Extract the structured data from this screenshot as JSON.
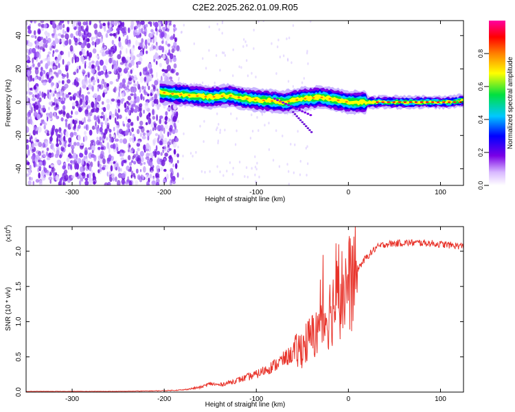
{
  "title": "C2E2.2025.262.01.09.R05",
  "chart_data": [
    {
      "type": "heatmap",
      "name": "spectrogram",
      "xlabel": "Height of straight line (km)",
      "ylabel": "Frequency (Hz)",
      "xlim": [
        -350,
        125
      ],
      "ylim": [
        -50,
        49
      ],
      "xticks": [
        -300,
        -200,
        -100,
        0,
        100
      ],
      "yticks": [
        -40,
        -20,
        0,
        20,
        40
      ],
      "colorbar": {
        "label": "Normalized spectral amplitude",
        "range": [
          0,
          1
        ],
        "ticks": [
          0.0,
          0.2,
          0.4,
          0.6,
          0.8
        ],
        "colors": [
          "#ffffff",
          "#7a00e6",
          "#0000ff",
          "#00c8ff",
          "#00e040",
          "#ffff00",
          "#ff8000",
          "#ff0000",
          "#ff00a0"
        ]
      },
      "ridge": {
        "description_points_x": [
          -205,
          -190,
          -170,
          -150,
          -130,
          -110,
          -90,
          -70,
          -50,
          -30,
          -10,
          0,
          20,
          50,
          80,
          110,
          125
        ],
        "description_points_y": [
          6,
          5,
          4,
          3,
          4,
          2,
          1,
          0,
          2,
          3,
          1,
          0,
          0,
          0,
          0,
          0,
          1
        ]
      },
      "noise_region_x": [
        -350,
        -185
      ]
    },
    {
      "type": "line",
      "name": "snr",
      "xlabel": "Height of straight line (km)",
      "ylabel": "SNR (10 * v/v)",
      "scale_label": "(x10",
      "scale_exp": "4",
      "scale_close": ")",
      "xlim": [
        -350,
        125
      ],
      "ylim": [
        0,
        2.35
      ],
      "xticks": [
        -300,
        -200,
        -100,
        0,
        100
      ],
      "yticks": [
        0.0,
        0.5,
        1.0,
        1.5,
        2.0
      ],
      "series": [
        {
          "name": "SNR",
          "color": "#e8332a",
          "x": [
            -350,
            -300,
            -250,
            -200,
            -180,
            -160,
            -150,
            -140,
            -120,
            -100,
            -80,
            -60,
            -40,
            -30,
            -20,
            -10,
            0,
            10,
            20,
            30,
            40,
            60,
            80,
            100,
            125
          ],
          "y": [
            0.01,
            0.01,
            0.01,
            0.02,
            0.03,
            0.07,
            0.12,
            0.1,
            0.17,
            0.25,
            0.38,
            0.55,
            0.8,
            1.0,
            1.2,
            1.45,
            1.6,
            1.75,
            1.92,
            2.05,
            2.1,
            2.12,
            2.12,
            2.1,
            2.07
          ]
        }
      ]
    }
  ]
}
